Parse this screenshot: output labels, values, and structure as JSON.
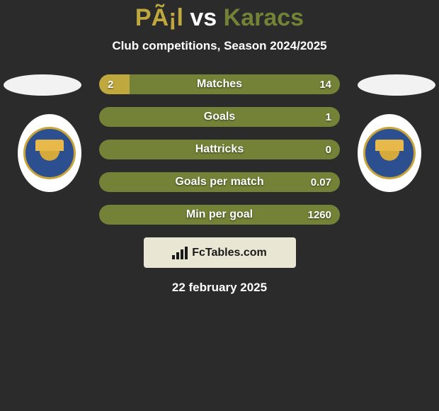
{
  "colors": {
    "background": "#2b2b2b",
    "player1": "#bfa93e",
    "player2": "#738236",
    "flag_left": "#f2f2f2",
    "flag_right": "#f2f2f2",
    "badge_bg": "#ffffff",
    "brand_box": "#e9e6d3",
    "text": "#ffffff"
  },
  "title": {
    "text_p1": "PÃ¡l",
    "text_vs": " vs ",
    "text_p2": "Karacs",
    "fontsize": 34
  },
  "subtitle": {
    "text": "Club competitions, Season 2024/2025",
    "fontsize": 17
  },
  "bars": {
    "height": 28,
    "radius": 14,
    "gap": 18,
    "label_fontsize": 16,
    "value_fontsize": 15,
    "items": [
      {
        "label": "Matches",
        "leftVal": "2",
        "rightVal": "14",
        "leftPct": 12.5,
        "rightPct": 87.5
      },
      {
        "label": "Goals",
        "leftVal": "",
        "rightVal": "1",
        "leftPct": 0,
        "rightPct": 100
      },
      {
        "label": "Hattricks",
        "leftVal": "",
        "rightVal": "0",
        "leftPct": 0,
        "rightPct": 100
      },
      {
        "label": "Goals per match",
        "leftVal": "",
        "rightVal": "0.07",
        "leftPct": 0,
        "rightPct": 100
      },
      {
        "label": "Min per goal",
        "leftVal": "",
        "rightVal": "1260",
        "leftPct": 0,
        "rightPct": 100
      }
    ]
  },
  "brand": {
    "text": "FcTables.com",
    "fontsize": 16
  },
  "date": {
    "text": "22 february 2025",
    "fontsize": 17
  },
  "teams": {
    "left": {
      "badge_text_top": "CSÁKVÁR",
      "badge_text_bottom": "AQVITAL FC"
    },
    "right": {
      "badge_text_top": "CSÁKVÁR",
      "badge_text_bottom": "AQVITAL FC"
    }
  }
}
